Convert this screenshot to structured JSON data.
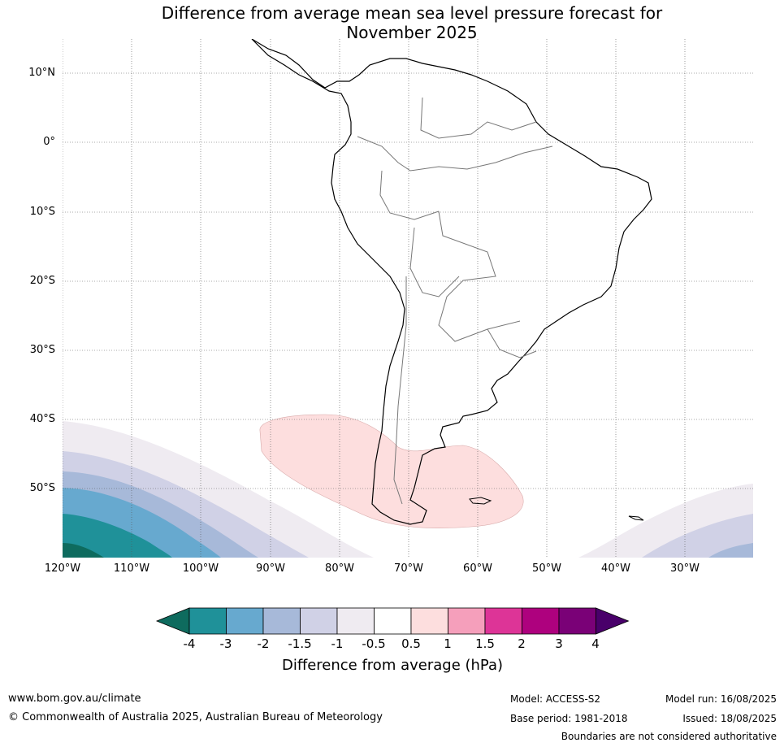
{
  "title_line1": "Difference from average mean sea level pressure forecast for",
  "title_line2": "November 2025",
  "lat_labels": [
    "10°N",
    "0°",
    "10°S",
    "20°S",
    "30°S",
    "40°S",
    "50°S"
  ],
  "lon_labels": [
    "120°W",
    "110°W",
    "100°W",
    "90°W",
    "80°W",
    "70°W",
    "60°W",
    "50°W",
    "40°W",
    "30°W"
  ],
  "colorbar": {
    "ticks": [
      "-4",
      "-3",
      "-2",
      "-1.5",
      "-1",
      "-0.5",
      "0.5",
      "1",
      "1.5",
      "2",
      "3",
      "4"
    ],
    "colors": [
      "#0e6b5e",
      "#1f9199",
      "#67a9cf",
      "#a7b9d9",
      "#d0d1e6",
      "#efebf1",
      "#ffffff",
      "#fddede",
      "#f59fbb",
      "#dd3497",
      "#ae017e",
      "#7a0177",
      "#49006a"
    ],
    "label": "Difference from average (hPa)"
  },
  "footer": {
    "website": "www.bom.gov.au/climate",
    "copyright": "© Commonwealth of Australia 2025, Australian Bureau of Meteorology",
    "model": "Model: ACCESS-S2",
    "base_period": "Base period: 1981-2018",
    "model_run": "Model run: 16/08/2025",
    "issued": "Issued: 18/08/2025",
    "disclaimer": "Boundaries are not considered authoritative"
  }
}
